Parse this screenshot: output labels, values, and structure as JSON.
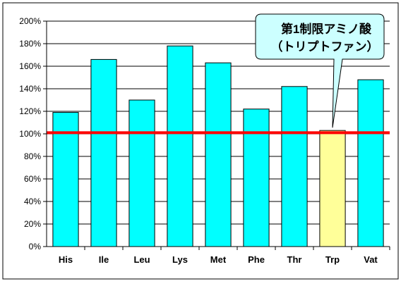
{
  "chart_data": {
    "type": "bar",
    "categories": [
      "His",
      "Ile",
      "Leu",
      "Lys",
      "Met",
      "Phe",
      "Thr",
      "Trp",
      "Vat"
    ],
    "values": [
      119,
      166,
      130,
      178,
      163,
      122,
      142,
      103,
      148
    ],
    "unit": "%",
    "ylim": [
      0,
      200
    ],
    "yticks": [
      0,
      20,
      40,
      60,
      80,
      100,
      120,
      140,
      160,
      180,
      200
    ],
    "ytick_labels": [
      "0%",
      "20%",
      "40%",
      "60%",
      "80%",
      "100%",
      "120%",
      "140%",
      "160%",
      "180%",
      "200%"
    ],
    "reference_line": {
      "value": 101,
      "color": "#ff0000"
    },
    "highlight": {
      "category": "Trp",
      "color": "#ffff99"
    },
    "bar_color": "#00ffff",
    "grid": true,
    "annotation": {
      "lines": [
        "第1制限アミノ酸",
        "（トリプトファン）"
      ],
      "fill": "#ccffff",
      "points_to": "Trp"
    }
  }
}
